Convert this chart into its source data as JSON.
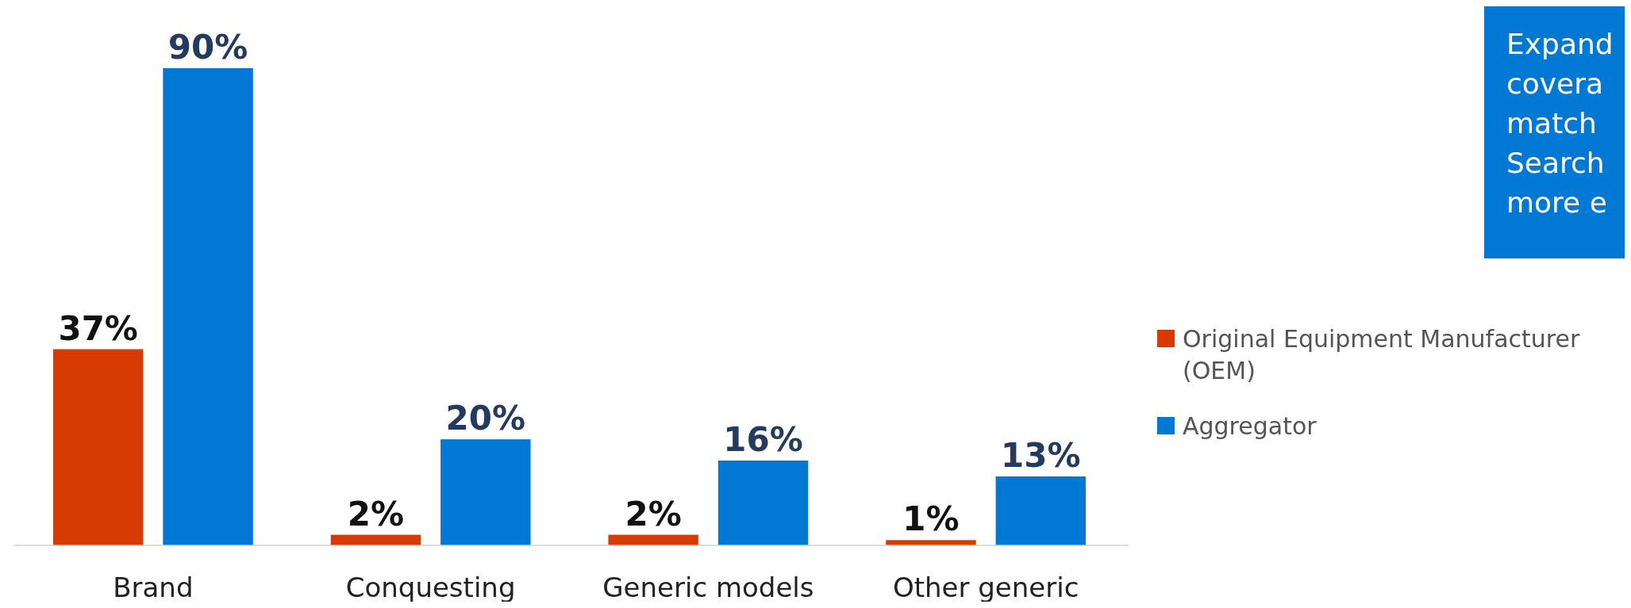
{
  "chart_data": {
    "type": "bar",
    "categories": [
      "Brand",
      "Conquesting",
      "Generic models",
      "Other generic"
    ],
    "series": [
      {
        "name": "Original Equipment Manufacturer (OEM)",
        "color": "#d83b01",
        "values": [
          37,
          2,
          2,
          1
        ],
        "value_labels": [
          "37%",
          "2%",
          "2%",
          "1%"
        ]
      },
      {
        "name": "Aggregator",
        "color": "#0078d4",
        "values": [
          90,
          20,
          16,
          13
        ],
        "value_labels": [
          "90%",
          "20%",
          "16%",
          "13%"
        ]
      }
    ],
    "legend": "right",
    "annotations": [
      "Expand\ncovera\nmatch\nSearch\nmore e"
    ]
  }
}
